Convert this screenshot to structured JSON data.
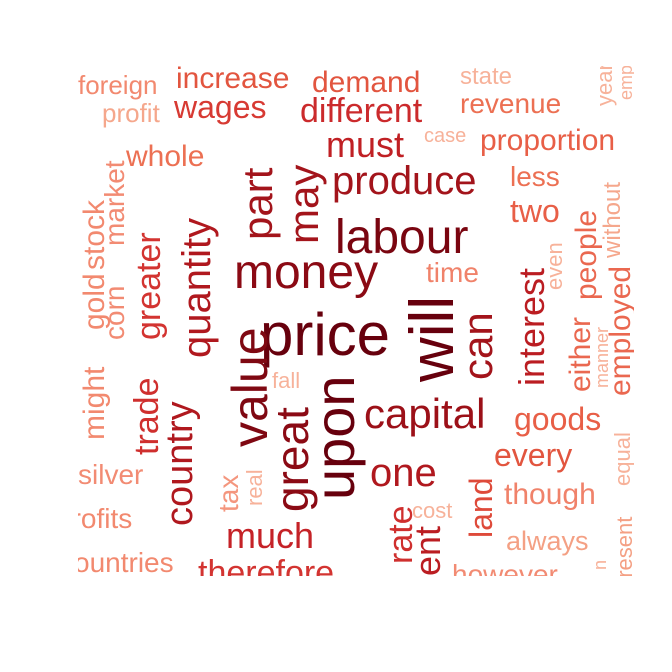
{
  "word_cloud": {
    "words": [
      {
        "text": "price",
        "color": "#67000d"
      },
      {
        "text": "will",
        "color": "#67000d"
      },
      {
        "text": "upon",
        "color": "#67000d"
      },
      {
        "text": "labour",
        "color": "#7a0510"
      },
      {
        "text": "money",
        "color": "#8b0a14"
      },
      {
        "text": "value",
        "color": "#7f0812"
      },
      {
        "text": "great",
        "color": "#8b0a14"
      },
      {
        "text": "capital",
        "color": "#9c1018"
      },
      {
        "text": "produce",
        "color": "#a3141b"
      },
      {
        "text": "part",
        "color": "#a3141b"
      },
      {
        "text": "may",
        "color": "#a3141b"
      },
      {
        "text": "can",
        "color": "#a3141b"
      },
      {
        "text": "one",
        "color": "#b0181e"
      },
      {
        "text": "quantity",
        "color": "#b0181e"
      },
      {
        "text": "country",
        "color": "#b0181e"
      },
      {
        "text": "interest",
        "color": "#bb1d22"
      },
      {
        "text": "must",
        "color": "#c02024"
      },
      {
        "text": "much",
        "color": "#c52227"
      },
      {
        "text": "different",
        "color": "#cb2a2c"
      },
      {
        "text": "trade",
        "color": "#cf2f2e"
      },
      {
        "text": "rate",
        "color": "#cf2f2e"
      },
      {
        "text": "greater",
        "color": "#d33431"
      },
      {
        "text": "wages",
        "color": "#d73a33"
      },
      {
        "text": "therefore",
        "color": "#d33431"
      },
      {
        "text": "land",
        "color": "#de4a3a"
      },
      {
        "text": "every",
        "color": "#e2553f"
      },
      {
        "text": "goods",
        "color": "#e85f47"
      },
      {
        "text": "two",
        "color": "#e85f47"
      },
      {
        "text": "people",
        "color": "#ea6850"
      },
      {
        "text": "either",
        "color": "#ea6850"
      },
      {
        "text": "revenue",
        "color": "#ec7053"
      },
      {
        "text": "whole",
        "color": "#ec7053"
      },
      {
        "text": "proportion",
        "color": "#e85f47"
      },
      {
        "text": "increase",
        "color": "#e2553f"
      },
      {
        "text": "demand",
        "color": "#e2553f"
      },
      {
        "text": "less",
        "color": "#ec7053"
      },
      {
        "text": "employed",
        "color": "#ea6850"
      },
      {
        "text": "time",
        "color": "#f0826a"
      },
      {
        "text": "though",
        "color": "#f0826a"
      },
      {
        "text": "silver",
        "color": "#f28b73"
      },
      {
        "text": "tax",
        "color": "#f4967e"
      },
      {
        "text": "corn",
        "color": "#f28b73"
      },
      {
        "text": "market",
        "color": "#f28b73"
      },
      {
        "text": "always",
        "color": "#f4a084"
      },
      {
        "text": "profit",
        "color": "#f5a78c"
      },
      {
        "text": "foreign",
        "color": "#f2896f"
      },
      {
        "text": "state",
        "color": "#f7b29a"
      },
      {
        "text": "might",
        "color": "#f2896f"
      },
      {
        "text": "gold",
        "color": "#f2896f"
      },
      {
        "text": "stock",
        "color": "#f2896f"
      },
      {
        "text": "profits",
        "color": "#f2896f"
      },
      {
        "text": "countries",
        "color": "#f2896f"
      },
      {
        "text": "without",
        "color": "#f5a78c"
      },
      {
        "text": "real",
        "color": "#f7b29a"
      },
      {
        "text": "fall",
        "color": "#f7b29a"
      },
      {
        "text": "case",
        "color": "#f7b29a"
      },
      {
        "text": "cost",
        "color": "#f7b29a"
      },
      {
        "text": "manner",
        "color": "#f7b29a"
      },
      {
        "text": "however",
        "color": "#f28b73"
      },
      {
        "text": "equal",
        "color": "#f7b29a"
      },
      {
        "text": "even",
        "color": "#f7b29a"
      },
      {
        "text": "present",
        "color": "#f4a084"
      },
      {
        "text": "year",
        "color": "#f7b29a"
      },
      {
        "text": "employment",
        "color": "#f7b29a"
      },
      {
        "text": "rent",
        "color": "#bb1d22"
      },
      {
        "text": "n",
        "color": "#f7b29a"
      }
    ]
  }
}
